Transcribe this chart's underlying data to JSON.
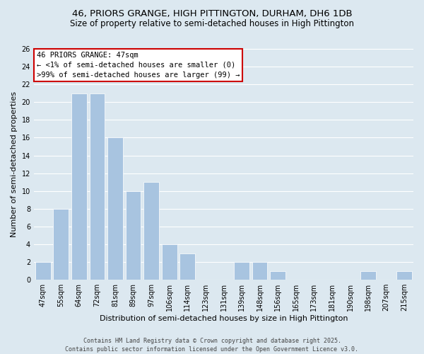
{
  "title": "46, PRIORS GRANGE, HIGH PITTINGTON, DURHAM, DH6 1DB",
  "subtitle": "Size of property relative to semi-detached houses in High Pittington",
  "xlabel": "Distribution of semi-detached houses by size in High Pittington",
  "ylabel": "Number of semi-detached properties",
  "categories": [
    "47sqm",
    "55sqm",
    "64sqm",
    "72sqm",
    "81sqm",
    "89sqm",
    "97sqm",
    "106sqm",
    "114sqm",
    "123sqm",
    "131sqm",
    "139sqm",
    "148sqm",
    "156sqm",
    "165sqm",
    "173sqm",
    "181sqm",
    "190sqm",
    "198sqm",
    "207sqm",
    "215sqm"
  ],
  "values": [
    2,
    8,
    21,
    21,
    16,
    10,
    11,
    4,
    3,
    0,
    0,
    2,
    2,
    1,
    0,
    0,
    0,
    0,
    1,
    0,
    1
  ],
  "bar_color": "#a8c4e0",
  "ylim": [
    0,
    26
  ],
  "yticks": [
    0,
    2,
    4,
    6,
    8,
    10,
    12,
    14,
    16,
    18,
    20,
    22,
    24,
    26
  ],
  "annotation_title": "46 PRIORS GRANGE: 47sqm",
  "annotation_line1": "← <1% of semi-detached houses are smaller (0)",
  "annotation_line2": ">99% of semi-detached houses are larger (99) →",
  "annotation_box_color": "#ffffff",
  "annotation_border_color": "#cc0000",
  "bg_color": "#dce8f0",
  "plot_bg_color": "#dce8f0",
  "footer_line1": "Contains HM Land Registry data © Crown copyright and database right 2025.",
  "footer_line2": "Contains public sector information licensed under the Open Government Licence v3.0.",
  "title_fontsize": 9.5,
  "subtitle_fontsize": 8.5,
  "xlabel_fontsize": 8,
  "ylabel_fontsize": 8,
  "tick_fontsize": 7,
  "annotation_fontsize": 7.5,
  "footer_fontsize": 6
}
